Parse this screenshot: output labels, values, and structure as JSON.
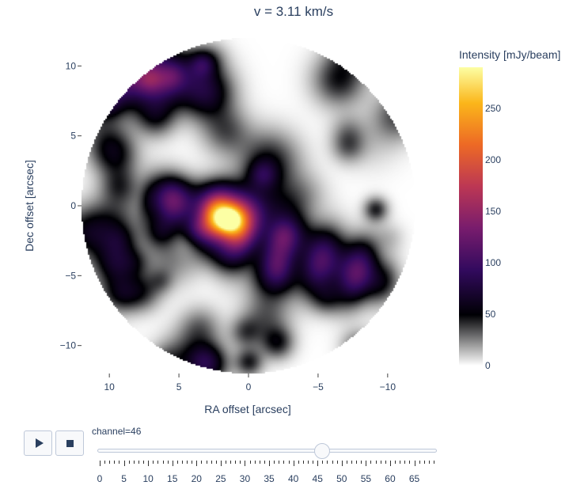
{
  "title": "v = 3.11 km/s",
  "chart_data": {
    "type": "heatmap",
    "title": "v = 3.11 km/s",
    "xlabel": "RA offset [arcsec]",
    "ylabel": "Dec offset [arcsec]",
    "xlim": [
      12,
      -12
    ],
    "ylim": [
      -12,
      12
    ],
    "x_ticks": [
      10,
      5,
      0,
      -5,
      -10
    ],
    "x_tick_labels": [
      "10",
      "5",
      "0",
      "−5",
      "−10"
    ],
    "y_ticks": [
      10,
      5,
      0,
      -5,
      -10
    ],
    "y_tick_labels": [
      "10",
      "5",
      "0",
      "−5",
      "−10"
    ],
    "colorbar": {
      "title": "Intensity [mJy/beam]",
      "range": [
        0,
        290
      ],
      "ticks": [
        0,
        50,
        100,
        150,
        200,
        250
      ],
      "tick_labels": [
        "0",
        "50",
        "100",
        "150",
        "200",
        "250"
      ],
      "colorscale": [
        "#ffffff",
        "#9a9a9a",
        "#000004",
        "#320a5e",
        "#781c6d",
        "#bc3754",
        "#ed6925",
        "#fbb61a",
        "#fcffa4"
      ]
    },
    "field_radius_arcsec": 12,
    "peak": {
      "x": 1.4,
      "y": -1.0,
      "value": 290
    },
    "features": [
      {
        "kind": "elongated",
        "center_x": -3.0,
        "center_y": -3.3,
        "half_length": 6.5,
        "half_width": 1.6,
        "pa_deg": -17,
        "value": 85
      },
      {
        "kind": "elongated",
        "center_x": 4.5,
        "center_y": -0.3,
        "half_length": 3.0,
        "half_width": 1.1,
        "pa_deg": -10,
        "value": 55
      },
      {
        "kind": "blob",
        "x": 1.5,
        "y": -1.0,
        "sigma": 1.2,
        "value": 195
      },
      {
        "kind": "blob",
        "x": 3.0,
        "y": 8.0,
        "sigma": 1.3,
        "value": 55
      },
      {
        "kind": "blob",
        "x": 3.0,
        "y": -11.3,
        "sigma": 1.0,
        "value": 75
      },
      {
        "kind": "blob",
        "x": 9.5,
        "y": -4.2,
        "sigma": 1.1,
        "value": 55
      },
      {
        "kind": "blob",
        "x": -1.5,
        "y": 3.2,
        "sigma": 1.5,
        "value": 45
      },
      {
        "kind": "blob",
        "x": -6.5,
        "y": 9.0,
        "sigma": 1.3,
        "value": 45
      },
      {
        "kind": "blob",
        "x": 6.5,
        "y": 8.5,
        "sigma": 1.2,
        "value": 40
      },
      {
        "kind": "blob",
        "x": 9.5,
        "y": 3.5,
        "sigma": 1.1,
        "value": 35
      },
      {
        "kind": "blob",
        "x": -9.5,
        "y": -5.5,
        "sigma": 1.0,
        "value": 35
      }
    ]
  },
  "animation": {
    "play_label": "play",
    "stop_label": "stop",
    "slider_prefix": "channel=",
    "current_channel": 46,
    "channel_min": 0,
    "channel_max": 69,
    "channel_ticks": [
      0,
      5,
      10,
      15,
      20,
      25,
      30,
      35,
      40,
      45,
      50,
      55,
      60,
      65
    ],
    "channel_tick_labels": [
      "0",
      "5",
      "10",
      "15",
      "20",
      "25",
      "30",
      "35",
      "40",
      "45",
      "50",
      "55",
      "60",
      "65"
    ]
  }
}
